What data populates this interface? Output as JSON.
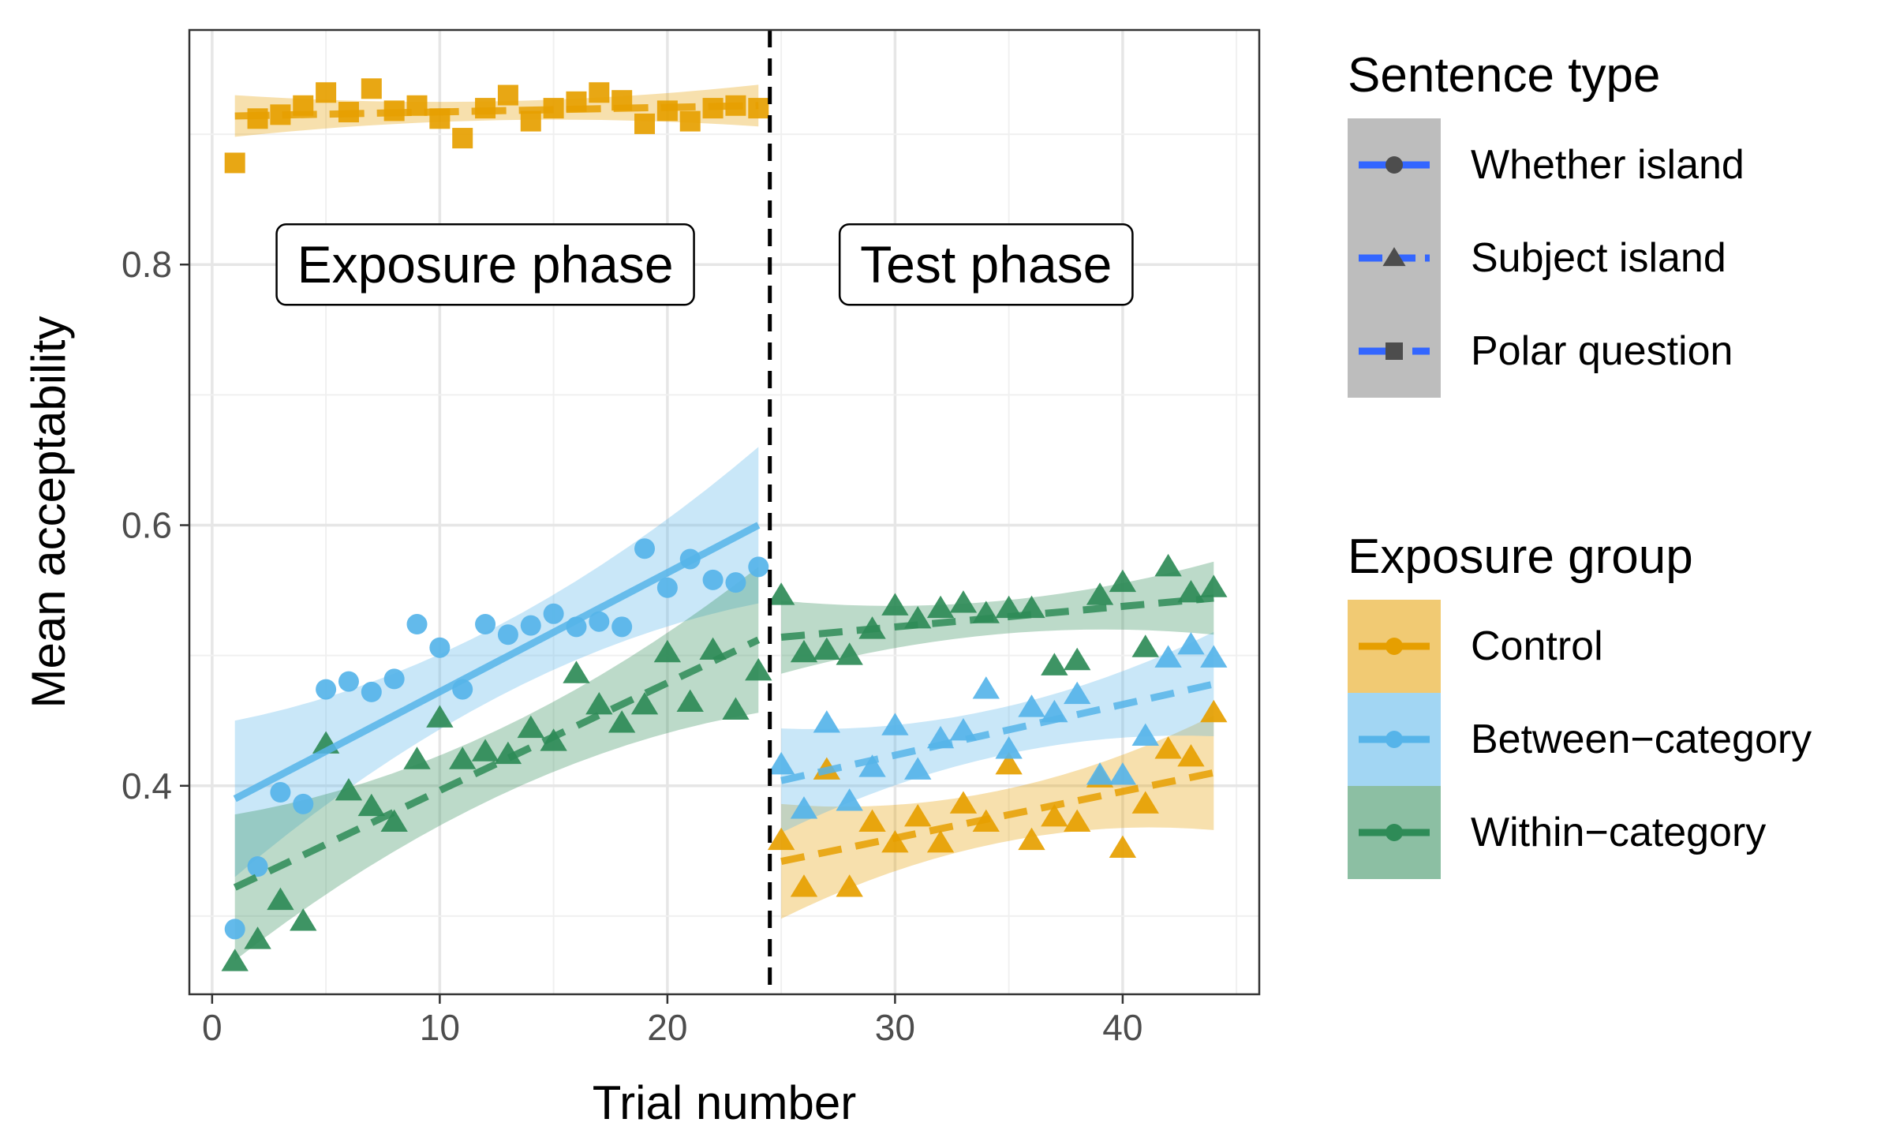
{
  "chart_data": {
    "type": "scatter",
    "xlabel": "Trial number",
    "ylabel": "Mean acceptability",
    "xlim": [
      -1,
      46
    ],
    "ylim": [
      0.24,
      0.98
    ],
    "x_ticks": [
      0,
      10,
      20,
      30,
      40
    ],
    "x_tick_labels": [
      "0",
      "10",
      "20",
      "30",
      "40"
    ],
    "y_ticks": [
      0.4,
      0.6,
      0.8
    ],
    "y_tick_labels": [
      "0.4",
      "0.6",
      "0.8"
    ],
    "grid": true,
    "legend_position": "right",
    "phase_boundary_x": 24.5,
    "annotations": [
      {
        "text": "Exposure phase",
        "x": 12,
        "y": 0.8
      },
      {
        "text": "Test phase",
        "x": 34,
        "y": 0.8
      }
    ],
    "legends": [
      {
        "title": "Sentence type",
        "entries": [
          {
            "label": "Whether island",
            "shape": "circle",
            "line": "solid"
          },
          {
            "label": "Subject island",
            "shape": "triangle",
            "line": "dashed"
          },
          {
            "label": "Polar question",
            "shape": "square",
            "line": "longdash"
          }
        ]
      },
      {
        "title": "Exposure group",
        "entries": [
          {
            "label": "Control",
            "color": "#E69F00"
          },
          {
            "label": "Between−category",
            "color": "#56B4E9"
          },
          {
            "label": "Within−category",
            "color": "#2E8B57"
          }
        ]
      }
    ],
    "series": [
      {
        "group": "Control",
        "sentence_type": "Polar question",
        "color": "#E69F00",
        "shape": "square",
        "x": [
          1,
          2,
          3,
          4,
          5,
          6,
          7,
          8,
          9,
          10,
          11,
          12,
          13,
          14,
          15,
          16,
          17,
          18,
          19,
          20,
          21,
          22,
          23,
          24
        ],
        "y": [
          0.878,
          0.912,
          0.915,
          0.922,
          0.932,
          0.917,
          0.935,
          0.918,
          0.922,
          0.912,
          0.897,
          0.92,
          0.93,
          0.91,
          0.92,
          0.925,
          0.932,
          0.926,
          0.908,
          0.918,
          0.91,
          0.92,
          0.922,
          0.92
        ],
        "fit": {
          "x": [
            1,
            24
          ],
          "y": [
            0.914,
            0.922
          ],
          "se": 0.008,
          "line": "longdash"
        }
      },
      {
        "group": "Between−category",
        "sentence_type": "Whether island",
        "color": "#56B4E9",
        "shape": "circle",
        "x": [
          1,
          2,
          3,
          4,
          5,
          6,
          7,
          8,
          9,
          10,
          11,
          12,
          13,
          14,
          15,
          16,
          17,
          18,
          19,
          20,
          21,
          22,
          23,
          24
        ],
        "y": [
          0.29,
          0.338,
          0.395,
          0.386,
          0.474,
          0.48,
          0.472,
          0.482,
          0.524,
          0.506,
          0.474,
          0.524,
          0.516,
          0.523,
          0.532,
          0.522,
          0.526,
          0.522,
          0.582,
          0.552,
          0.574,
          0.558,
          0.556,
          0.568
        ],
        "fit": {
          "x": [
            1,
            24
          ],
          "y": [
            0.39,
            0.6
          ],
          "se": 0.03,
          "line": "solid"
        }
      },
      {
        "group": "Within−category",
        "sentence_type": "Subject island",
        "color": "#2E8B57",
        "shape": "triangle",
        "x": [
          1,
          2,
          3,
          4,
          5,
          6,
          7,
          8,
          9,
          10,
          11,
          12,
          13,
          14,
          15,
          16,
          17,
          18,
          19,
          20,
          21,
          22,
          23,
          24
        ],
        "y": [
          0.265,
          0.282,
          0.312,
          0.296,
          0.432,
          0.396,
          0.384,
          0.372,
          0.42,
          0.452,
          0.42,
          0.426,
          0.424,
          0.444,
          0.434,
          0.486,
          0.462,
          0.448,
          0.462,
          0.502,
          0.464,
          0.504,
          0.458,
          0.488
        ],
        "fit": {
          "x": [
            1,
            24
          ],
          "y": [
            0.322,
            0.512
          ],
          "se": 0.028,
          "line": "dashed"
        }
      },
      {
        "group": "Control",
        "sentence_type": "Subject island",
        "color": "#E69F00",
        "shape": "triangle",
        "x": [
          25,
          26,
          27,
          28,
          29,
          30,
          31,
          32,
          33,
          34,
          35,
          36,
          37,
          38,
          39,
          40,
          41,
          42,
          43,
          44
        ],
        "y": [
          0.358,
          0.322,
          0.412,
          0.322,
          0.372,
          0.356,
          0.376,
          0.356,
          0.386,
          0.372,
          0.416,
          0.358,
          0.376,
          0.372,
          0.406,
          0.352,
          0.386,
          0.428,
          0.422,
          0.456
        ],
        "fit": {
          "x": [
            25,
            44
          ],
          "y": [
            0.342,
            0.41
          ],
          "se": 0.022,
          "line": "dashed"
        }
      },
      {
        "group": "Between−category",
        "sentence_type": "Subject island",
        "color": "#56B4E9",
        "shape": "triangle",
        "x": [
          25,
          26,
          27,
          28,
          29,
          30,
          31,
          32,
          33,
          34,
          35,
          36,
          37,
          38,
          39,
          40,
          41,
          42,
          43,
          44
        ],
        "y": [
          0.416,
          0.382,
          0.448,
          0.388,
          0.414,
          0.446,
          0.412,
          0.436,
          0.442,
          0.474,
          0.428,
          0.46,
          0.456,
          0.47,
          0.408,
          0.408,
          0.438,
          0.498,
          0.508,
          0.498
        ],
        "fit": {
          "x": [
            25,
            44
          ],
          "y": [
            0.404,
            0.478
          ],
          "se": 0.02,
          "line": "dashed"
        }
      },
      {
        "group": "Within−category",
        "sentence_type": "Subject island",
        "color": "#2E8B57",
        "shape": "triangle",
        "x": [
          25,
          26,
          27,
          28,
          29,
          30,
          31,
          32,
          33,
          34,
          35,
          36,
          37,
          38,
          39,
          40,
          41,
          42,
          43,
          44
        ],
        "y": [
          0.546,
          0.502,
          0.504,
          0.5,
          0.52,
          0.538,
          0.528,
          0.536,
          0.54,
          0.532,
          0.536,
          0.536,
          0.492,
          0.496,
          0.546,
          0.556,
          0.506,
          0.568,
          0.548,
          0.552
        ],
        "fit": {
          "x": [
            25,
            44
          ],
          "y": [
            0.514,
            0.544
          ],
          "se": 0.014,
          "line": "dashed"
        }
      }
    ]
  }
}
